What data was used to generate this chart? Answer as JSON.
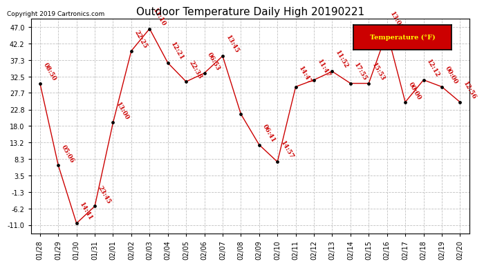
{
  "title": "Outdoor Temperature Daily High 20190221",
  "copyright": "Copyright 2019 Cartronics.com",
  "legend_label": "Temperature (°F)",
  "x_labels": [
    "01/28",
    "01/29",
    "01/30",
    "01/31",
    "02/01",
    "02/02",
    "02/03",
    "02/04",
    "02/05",
    "02/06",
    "02/07",
    "02/08",
    "02/09",
    "02/10",
    "02/11",
    "02/12",
    "02/13",
    "02/14",
    "02/15",
    "02/16",
    "02/17",
    "02/18",
    "02/19",
    "02/20"
  ],
  "points": [
    [
      0,
      30.5,
      "08:50"
    ],
    [
      1,
      6.5,
      "05:06"
    ],
    [
      2,
      -10.5,
      "14:41"
    ],
    [
      3,
      -5.5,
      "23:45"
    ],
    [
      4,
      19.0,
      "13:00"
    ],
    [
      5,
      40.0,
      "22:25"
    ],
    [
      6,
      46.5,
      "11:10"
    ],
    [
      7,
      36.5,
      "12:21"
    ],
    [
      8,
      31.0,
      "22:38"
    ],
    [
      9,
      33.5,
      "06:53"
    ],
    [
      10,
      38.5,
      "13:45"
    ],
    [
      11,
      21.5,
      ""
    ],
    [
      12,
      12.5,
      "06:41"
    ],
    [
      13,
      7.5,
      "14:57"
    ],
    [
      14,
      29.5,
      "14:47"
    ],
    [
      15,
      31.5,
      "11:47"
    ],
    [
      16,
      34.0,
      "11:52"
    ],
    [
      17,
      30.5,
      "17:55"
    ],
    [
      18,
      30.5,
      "15:53"
    ],
    [
      19,
      45.5,
      "13:08"
    ],
    [
      20,
      25.0,
      "00:00"
    ],
    [
      21,
      31.5,
      "12:12"
    ],
    [
      22,
      29.5,
      "00:00"
    ],
    [
      23,
      25.0,
      "12:56"
    ]
  ],
  "yticks": [
    47.0,
    42.2,
    37.3,
    32.5,
    27.7,
    22.8,
    18.0,
    13.2,
    8.3,
    3.5,
    -1.3,
    -6.2,
    -11.0
  ],
  "ylim": [
    -13.5,
    49.5
  ],
  "xlim": [
    -0.5,
    23.5
  ],
  "line_color": "#cc0000",
  "marker_color": "#000000",
  "bg_color": "#ffffff",
  "grid_color": "#c0c0c0",
  "title_fontsize": 11,
  "tick_fontsize": 7,
  "annot_fontsize": 6.5,
  "legend_bg": "#cc0000",
  "legend_fg": "#ffff00",
  "legend_border": "#000000"
}
